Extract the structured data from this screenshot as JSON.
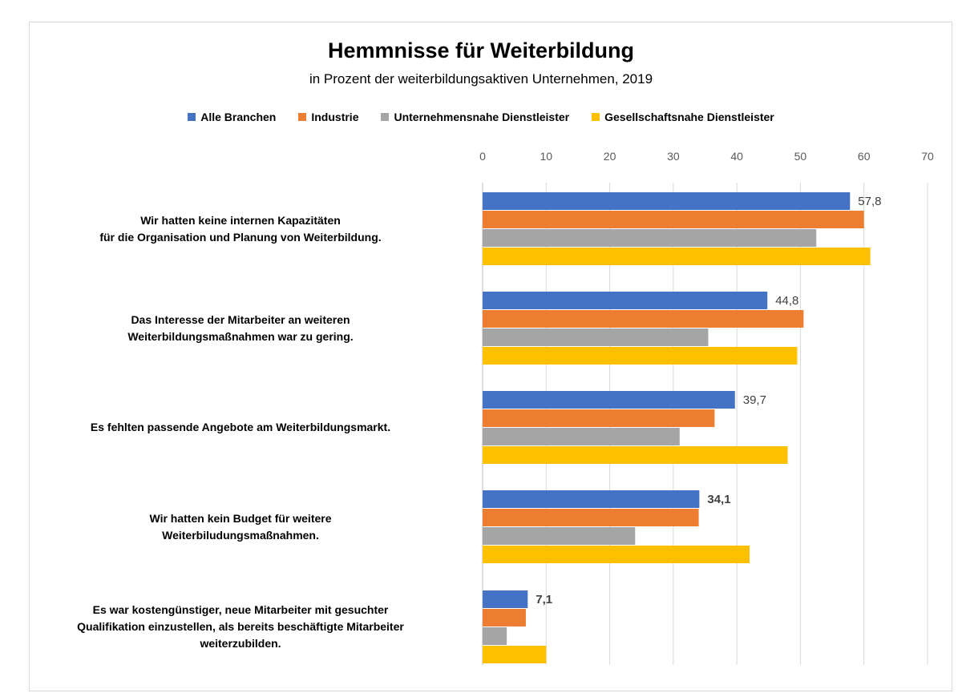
{
  "chart_data": {
    "type": "bar",
    "orientation": "horizontal",
    "title": "Hemmnisse für Weiterbildung",
    "subtitle": "in Prozent der weiterbildungsaktiven  Unternehmen, 2019",
    "legend_position": "top",
    "grid": true,
    "xlim": [
      0,
      70
    ],
    "x_ticks": [
      "0",
      "10",
      "20",
      "30",
      "40",
      "50",
      "60",
      "70"
    ],
    "categories": [
      [
        "Wir hatten keine internen Kapazitäten",
        "für die Organisation und Planung von Weiterbildung."
      ],
      [
        "Das Interesse der Mitarbeiter an weiteren",
        "Weiterbildungsmaßnahmen war zu gering."
      ],
      [
        "Es fehlten passende Angebote am Weiterbildungsmarkt."
      ],
      [
        "Wir hatten kein Budget für weitere",
        "Weiterbiludungsmaßnahmen."
      ],
      [
        "Es war kostengünstiger, neue Mitarbeiter mit gesuchter",
        "Qualifikation einzustellen, als bereits beschäftigte Mitarbeiter",
        "weiterzubilden."
      ]
    ],
    "series": [
      {
        "name": "Alle Branchen",
        "color": "#4472c4",
        "values": [
          57.8,
          44.8,
          39.7,
          34.1,
          7.1
        ]
      },
      {
        "name": "Industrie",
        "color": "#ed7d31",
        "values": [
          60,
          50.5,
          36.5,
          34,
          6.8
        ]
      },
      {
        "name": "Unternehmensnahe Dienstleister",
        "color": "#a5a5a5",
        "values": [
          52.5,
          35.5,
          31,
          24,
          3.8
        ]
      },
      {
        "name": "Gesellschaftsnahe Dienstleister",
        "color": "#ffc000",
        "values": [
          61,
          49.5,
          48,
          42,
          10
        ]
      }
    ],
    "data_labels": [
      "57,8",
      "44,8",
      "39,7",
      "34,1",
      "7,1"
    ]
  }
}
